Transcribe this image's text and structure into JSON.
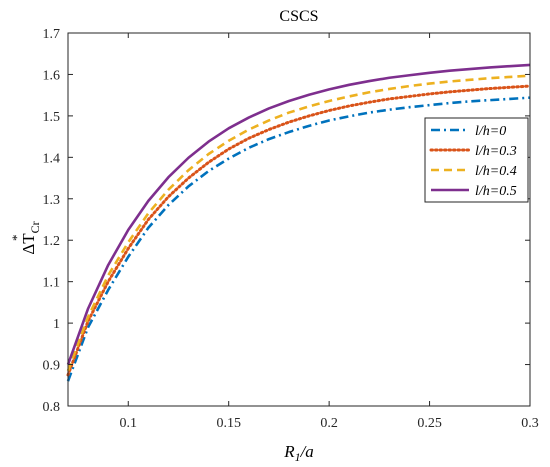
{
  "chart_data": {
    "type": "line",
    "title": "CSCS",
    "xlabel": {
      "main": "R",
      "sub": "1",
      "rest": "/a"
    },
    "ylabel": {
      "delta": "Δ",
      "main": "T",
      "sup": "*",
      "sub": "Cr"
    },
    "xlim": [
      0.07,
      0.3
    ],
    "ylim": [
      0.8,
      1.7
    ],
    "x_ticks": [
      0.1,
      0.15,
      0.2,
      0.25,
      0.3
    ],
    "x_tick_labels": [
      "0.1",
      "0.15",
      "0.2",
      "0.25",
      "0.3"
    ],
    "y_ticks": [
      0.8,
      0.9,
      1.0,
      1.1,
      1.2,
      1.3,
      1.4,
      1.5,
      1.6,
      1.7
    ],
    "y_tick_labels": [
      "0.8",
      "0.9",
      "1",
      "1.1",
      "1.2",
      "1.3",
      "1.4",
      "1.5",
      "1.6",
      "1.7"
    ],
    "grid": false,
    "legend_position": "right",
    "x": [
      0.07,
      0.08,
      0.09,
      0.1,
      0.11,
      0.12,
      0.13,
      0.14,
      0.15,
      0.16,
      0.17,
      0.18,
      0.19,
      0.2,
      0.21,
      0.22,
      0.23,
      0.24,
      0.25,
      0.26,
      0.27,
      0.28,
      0.29,
      0.3
    ],
    "series": [
      {
        "name": "l/h=0",
        "color": "#0072BD",
        "dash": "dashdot",
        "values": [
          0.86,
          0.99,
          1.08,
          1.16,
          1.23,
          1.285,
          1.33,
          1.367,
          1.397,
          1.423,
          1.444,
          1.461,
          1.476,
          1.489,
          1.499,
          1.508,
          1.515,
          1.521,
          1.526,
          1.531,
          1.535,
          1.538,
          1.541,
          1.544
        ]
      },
      {
        "name": "l/h=0.3",
        "color": "#D95319",
        "dash": "dotted",
        "values": [
          0.875,
          1.005,
          1.1,
          1.18,
          1.25,
          1.305,
          1.35,
          1.388,
          1.42,
          1.446,
          1.467,
          1.485,
          1.5,
          1.513,
          1.524,
          1.533,
          1.541,
          1.547,
          1.553,
          1.558,
          1.562,
          1.566,
          1.569,
          1.572
        ]
      },
      {
        "name": "l/h=0.4",
        "color": "#EDB120",
        "dash": "dashed",
        "values": [
          0.885,
          1.015,
          1.115,
          1.195,
          1.265,
          1.322,
          1.369,
          1.408,
          1.44,
          1.467,
          1.489,
          1.508,
          1.523,
          1.536,
          1.547,
          1.557,
          1.565,
          1.572,
          1.578,
          1.583,
          1.587,
          1.591,
          1.594,
          1.597
        ]
      },
      {
        "name": "l/h=0.5",
        "color": "#7E2F8E",
        "dash": "solid",
        "values": [
          0.9,
          1.035,
          1.14,
          1.225,
          1.295,
          1.352,
          1.399,
          1.438,
          1.47,
          1.496,
          1.518,
          1.536,
          1.551,
          1.564,
          1.575,
          1.584,
          1.592,
          1.598,
          1.604,
          1.609,
          1.613,
          1.617,
          1.62,
          1.623
        ]
      }
    ]
  }
}
